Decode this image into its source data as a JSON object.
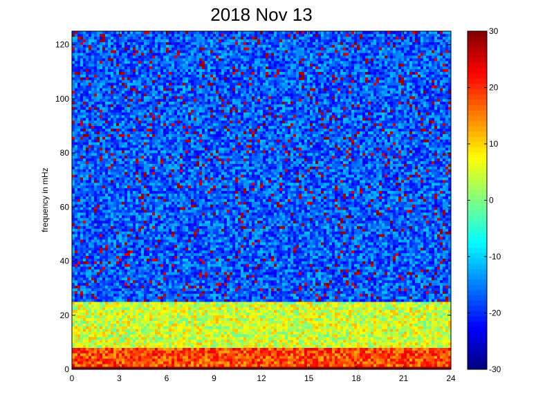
{
  "chart_data": {
    "type": "heatmap",
    "title": "2018 Nov 13",
    "xlabel": "",
    "ylabel": "frequency in mHz",
    "x_ticks": [
      "0",
      "3",
      "6",
      "9",
      "12",
      "15",
      "18",
      "21",
      "24"
    ],
    "y_ticks": [
      "0",
      "20",
      "40",
      "60",
      "80",
      "100",
      "120"
    ],
    "xlim": [
      0,
      24
    ],
    "ylim": [
      0,
      125
    ],
    "colorbar": {
      "range": [
        -30,
        30
      ],
      "ticks": [
        "30",
        "20",
        "10",
        "0",
        "-10",
        "-20",
        "-30"
      ],
      "colormap": "jet"
    },
    "description_values": {
      "background_level": -17,
      "low_freq_band_level": 5,
      "low_freq_band_max_mhz": 25,
      "vlf_band_level": 18,
      "vlf_band_max_mhz": 8
    }
  },
  "colors": {
    "jet": [
      "#00008f",
      "#0000ff",
      "#00ffff",
      "#ffff00",
      "#ff0000",
      "#800000"
    ]
  }
}
